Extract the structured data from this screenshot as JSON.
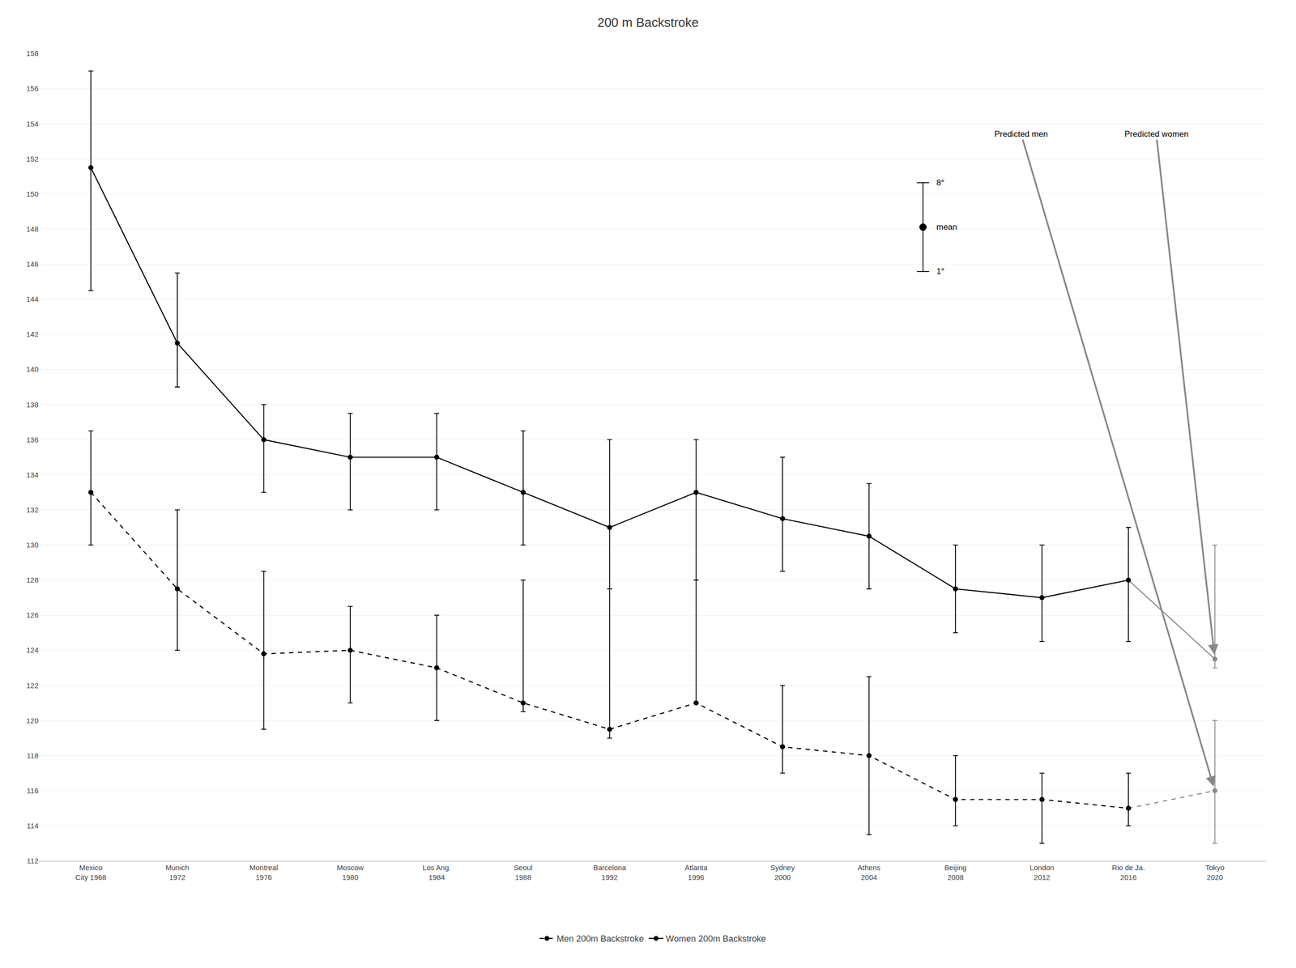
{
  "chart_data": {
    "type": "line",
    "title": "200 m Backstroke",
    "categories": [
      "Mexico\nCity 1968",
      "Munich\n1972",
      "Montreal\n1976",
      "Moscow\n1980",
      "Los Ang.\n1984",
      "Seoul\n1988",
      "Barcelona\n1992",
      "Atlanta\n1996",
      "Sydney\n2000",
      "Athens\n2004",
      "Beijing\n2008",
      "London\n2012",
      "Rio de Ja.\n2016",
      "Tokyo\n2020"
    ],
    "series": [
      {
        "name": "Men 200m Backstroke",
        "line_style": "dashed",
        "marker": "circle",
        "colors": [
          "#000000",
          "#000000",
          "#000000",
          "#000000",
          "#000000",
          "#000000",
          "#000000",
          "#000000",
          "#000000",
          "#000000",
          "#000000",
          "#000000",
          "#000000",
          "#888888"
        ],
        "values": [
          133.0,
          127.5,
          123.8,
          124.0,
          123.0,
          121.0,
          119.5,
          121.0,
          118.5,
          118.0,
          115.5,
          115.5,
          115.0,
          116.0
        ],
        "upper": [
          136.5,
          132.0,
          128.5,
          126.5,
          126.0,
          128.0,
          127.5,
          128.0,
          122.0,
          122.5,
          118.0,
          117.0,
          117.0,
          120.0
        ],
        "lower": [
          130.0,
          124.0,
          119.5,
          121.0,
          120.0,
          120.5,
          119.0,
          121.0,
          117.0,
          113.5,
          114.0,
          113.0,
          114.0,
          113.0
        ]
      },
      {
        "name": "Women 200m Backstroke",
        "line_style": "solid",
        "marker": "circle",
        "colors": [
          "#000000",
          "#000000",
          "#000000",
          "#000000",
          "#000000",
          "#000000",
          "#000000",
          "#000000",
          "#000000",
          "#000000",
          "#000000",
          "#000000",
          "#000000",
          "#888888"
        ],
        "values": [
          151.5,
          141.5,
          136.0,
          135.0,
          135.0,
          133.0,
          131.0,
          133.0,
          131.5,
          130.5,
          127.5,
          127.0,
          128.0,
          123.5
        ],
        "upper": [
          157.0,
          145.5,
          138.0,
          137.5,
          137.5,
          136.5,
          136.0,
          136.0,
          135.0,
          133.5,
          130.0,
          130.0,
          131.0,
          130.0
        ],
        "lower": [
          144.5,
          139.0,
          133.0,
          132.0,
          132.0,
          130.0,
          127.5,
          128.0,
          128.5,
          127.5,
          125.0,
          124.5,
          124.5,
          123.0
        ]
      }
    ],
    "annotations": [
      "Predicted men",
      "Predicted women"
    ],
    "key_labels": [
      "8°",
      "mean",
      "1°"
    ],
    "ylim": [
      112,
      158
    ],
    "yticks": [
      112,
      114,
      116,
      118,
      120,
      122,
      124,
      126,
      128,
      130,
      132,
      134,
      136,
      138,
      140,
      142,
      144,
      146,
      148,
      150,
      152,
      154,
      156,
      158
    ],
    "grid": true,
    "legend": "bottom"
  }
}
